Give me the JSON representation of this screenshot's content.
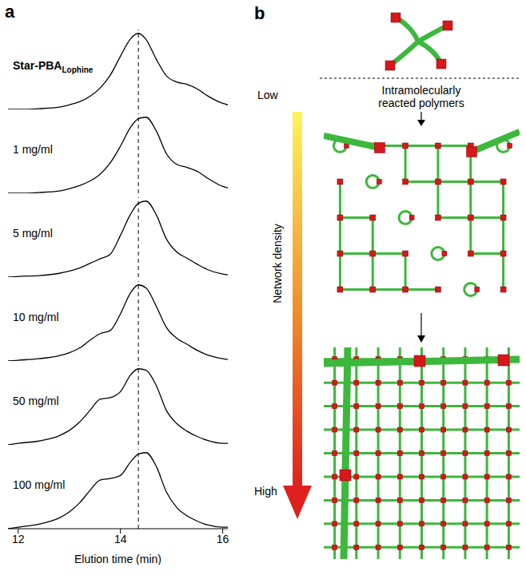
{
  "chart_data": [
    {
      "type": "line",
      "title": "Star-PBA",
      "subscript": "Lophine",
      "x": [
        11.8,
        12,
        12.4,
        12.8,
        13.0,
        13.2,
        13.4,
        13.6,
        13.8,
        14.0,
        14.2,
        14.35,
        14.5,
        14.7,
        14.9,
        15.1,
        15.3,
        15.5,
        15.7,
        16.0,
        16.1
      ],
      "values": [
        0.0,
        0.0,
        0.01,
        0.03,
        0.06,
        0.1,
        0.17,
        0.28,
        0.45,
        0.7,
        0.93,
        1.0,
        0.92,
        0.66,
        0.44,
        0.36,
        0.33,
        0.27,
        0.18,
        0.08,
        0.06
      ],
      "xlim": [
        11.8,
        16.1
      ],
      "ylim": [
        0,
        1.05
      ],
      "tick_labels": false,
      "vline": 14.35,
      "color": "#000000"
    },
    {
      "type": "line",
      "title": "1 mg/ml",
      "x": [
        11.8,
        12,
        12.4,
        12.8,
        13.0,
        13.2,
        13.4,
        13.6,
        13.8,
        14.0,
        14.2,
        14.35,
        14.5,
        14.7,
        14.9,
        15.1,
        15.3,
        15.5,
        15.7,
        16.0,
        16.1
      ],
      "values": [
        0.0,
        0.0,
        0.01,
        0.03,
        0.06,
        0.1,
        0.16,
        0.25,
        0.4,
        0.62,
        0.87,
        0.98,
        1.0,
        0.82,
        0.52,
        0.38,
        0.34,
        0.29,
        0.2,
        0.09,
        0.07
      ],
      "xlim": [
        11.8,
        16.1
      ],
      "ylim": [
        0,
        1.05
      ],
      "tick_labels": false,
      "vline": 14.35,
      "color": "#000000"
    },
    {
      "type": "line",
      "title": "5 mg/ml",
      "x": [
        11.8,
        12,
        12.4,
        12.8,
        13.0,
        13.2,
        13.4,
        13.6,
        13.8,
        14.0,
        14.2,
        14.35,
        14.5,
        14.7,
        14.9,
        15.1,
        15.3,
        15.5,
        15.7,
        16.0,
        16.1
      ],
      "values": [
        0.0,
        0.01,
        0.02,
        0.05,
        0.08,
        0.12,
        0.18,
        0.24,
        0.3,
        0.55,
        0.83,
        0.97,
        1.0,
        0.82,
        0.5,
        0.33,
        0.25,
        0.17,
        0.1,
        0.04,
        0.03
      ],
      "xlim": [
        11.8,
        16.1
      ],
      "ylim": [
        0,
        1.05
      ],
      "tick_labels": false,
      "vline": 14.35,
      "color": "#000000"
    },
    {
      "type": "line",
      "title": "10 mg/ml",
      "x": [
        11.8,
        12,
        12.4,
        12.8,
        13.0,
        13.2,
        13.4,
        13.6,
        13.8,
        14.0,
        14.2,
        14.35,
        14.5,
        14.7,
        14.9,
        15.1,
        15.3,
        15.5,
        15.7,
        16.0,
        16.1
      ],
      "values": [
        0.0,
        0.01,
        0.03,
        0.07,
        0.11,
        0.17,
        0.27,
        0.36,
        0.4,
        0.62,
        0.9,
        1.0,
        0.96,
        0.72,
        0.44,
        0.3,
        0.22,
        0.14,
        0.08,
        0.03,
        0.02
      ],
      "xlim": [
        11.8,
        16.1
      ],
      "ylim": [
        0,
        1.05
      ],
      "tick_labels": false,
      "vline": 14.35,
      "color": "#000000"
    },
    {
      "type": "line",
      "title": "50 mg/ml",
      "x": [
        11.8,
        12,
        12.4,
        12.8,
        13.0,
        13.2,
        13.4,
        13.6,
        13.8,
        14.0,
        14.2,
        14.35,
        14.5,
        14.7,
        14.9,
        15.1,
        15.3,
        15.5,
        15.7,
        16.0,
        16.1
      ],
      "values": [
        0.0,
        0.02,
        0.05,
        0.12,
        0.19,
        0.3,
        0.45,
        0.6,
        0.62,
        0.7,
        0.92,
        1.0,
        0.98,
        0.78,
        0.45,
        0.28,
        0.18,
        0.11,
        0.06,
        0.02,
        0.02
      ],
      "xlim": [
        11.8,
        16.1
      ],
      "ylim": [
        0,
        1.05
      ],
      "tick_labels": false,
      "vline": 14.35,
      "color": "#000000"
    },
    {
      "type": "line",
      "title": "100 mg/ml",
      "x": [
        11.8,
        12,
        12.4,
        12.8,
        13.0,
        13.2,
        13.4,
        13.6,
        13.8,
        14.0,
        14.2,
        14.35,
        14.5,
        14.7,
        14.9,
        15.1,
        15.3,
        15.5,
        15.7,
        16.0,
        16.1
      ],
      "values": [
        0.0,
        0.02,
        0.06,
        0.14,
        0.22,
        0.34,
        0.5,
        0.64,
        0.66,
        0.7,
        0.88,
        0.98,
        1.0,
        0.82,
        0.48,
        0.28,
        0.17,
        0.1,
        0.05,
        0.02,
        0.02
      ],
      "xlim": [
        11.8,
        16.1
      ],
      "ylim": [
        0,
        1.05
      ],
      "xticks": [
        12,
        14,
        16
      ],
      "xlabel": "Elution time (min)",
      "tick_labels": "x",
      "vline": 14.35,
      "color": "#000000"
    }
  ],
  "panel_labels": [
    "a",
    "b"
  ],
  "diagram": {
    "top_label": "Low",
    "bottom_label": "High",
    "arrow_label": "Network density",
    "caption": "Intramolecularly reacted polymers"
  }
}
